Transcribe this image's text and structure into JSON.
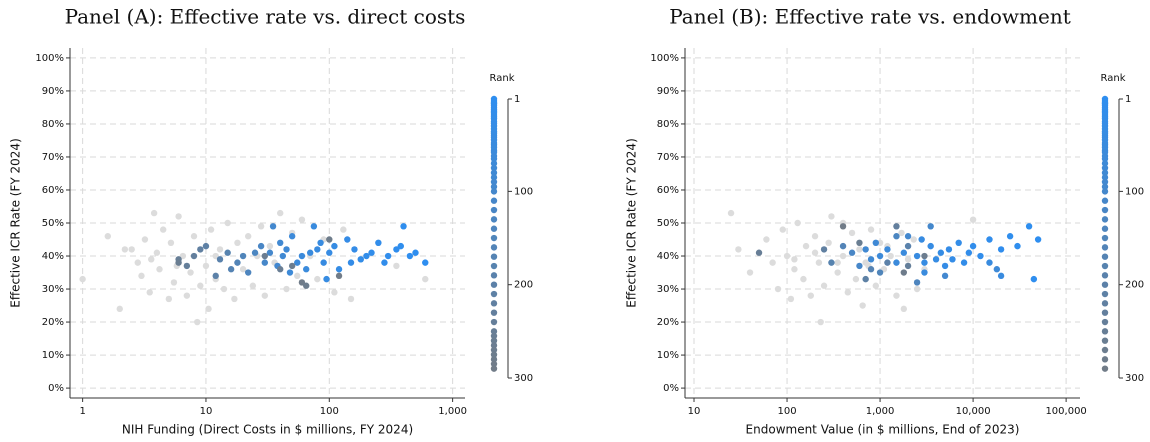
{
  "chart_data": [
    {
      "type": "scatter",
      "title": "Panel (A): Effective rate vs. direct costs",
      "xlabel": "NIH Funding (Direct Costs in $ millions, FY 2024)",
      "ylabel": "Effective ICR Rate (FY 2024)",
      "xscale": "log",
      "xlim": [
        0.79,
        1260
      ],
      "xticks": [
        1,
        10,
        100,
        {
          "value": 1000,
          "label": "1,000"
        }
      ],
      "ylim": [
        -3,
        103
      ],
      "yticks": [
        {
          "value": 0,
          "label": "0%"
        },
        {
          "value": 10,
          "label": "10%"
        },
        {
          "value": 20,
          "label": "20%"
        },
        {
          "value": 30,
          "label": "30%"
        },
        {
          "value": 40,
          "label": "40%"
        },
        {
          "value": 50,
          "label": "50%"
        },
        {
          "value": 60,
          "label": "60%"
        },
        {
          "value": 70,
          "label": "70%"
        },
        {
          "value": 80,
          "label": "80%"
        },
        {
          "value": 90,
          "label": "90%"
        },
        {
          "value": 100,
          "label": "100%"
        }
      ],
      "grid": true,
      "colorbar": {
        "title": "Rank",
        "lim": [
          1,
          300
        ],
        "ticks": [
          1,
          100,
          200,
          300
        ],
        "colors": [
          "#2e8ef0",
          "#737b84"
        ]
      },
      "series": [
        {
          "x": [
            600,
            500,
            450,
            400,
            380,
            350,
            300,
            280,
            250,
            220,
            200,
            180,
            160,
            150,
            140,
            120,
            110,
            100,
            95,
            90,
            85,
            80,
            75,
            70,
            65,
            60,
            55,
            50,
            48,
            45,
            42,
            40,
            38,
            35,
            33,
            30,
            28,
            25,
            22,
            20,
            18,
            16,
            15,
            13,
            12,
            10,
            9,
            8,
            7,
            6,
            40,
            6,
            30,
            50,
            100,
            120,
            60,
            65
          ],
          "y": [
            38,
            41,
            40,
            49,
            43,
            42,
            40,
            38,
            44,
            41,
            40,
            39,
            42,
            38,
            45,
            36,
            43,
            41,
            33,
            38,
            44,
            42,
            49,
            41,
            36,
            40,
            38,
            46,
            35,
            42,
            40,
            44,
            37,
            49,
            41,
            38,
            43,
            41,
            35,
            40,
            38,
            36,
            41,
            39,
            34,
            43,
            42,
            40,
            37,
            39,
            36,
            38,
            40,
            37,
            45,
            34,
            32,
            31
          ],
          "rank": [
            1,
            3,
            5,
            6,
            8,
            10,
            12,
            14,
            16,
            18,
            20,
            22,
            25,
            27,
            30,
            33,
            36,
            38,
            40,
            42,
            45,
            48,
            50,
            53,
            56,
            58,
            62,
            65,
            70,
            75,
            80,
            85,
            90,
            95,
            100,
            110,
            120,
            130,
            140,
            150,
            160,
            170,
            180,
            190,
            200,
            210,
            220,
            230,
            240,
            250,
            255,
            260,
            265,
            270,
            280,
            290,
            285,
            275
          ]
        },
        {
          "color": "#dcdcdc",
          "x": [
            1,
            1.6,
            2,
            2.2,
            2.8,
            3,
            3.2,
            3.5,
            3.8,
            4,
            4.2,
            4.5,
            5,
            5.2,
            5.5,
            6,
            6.5,
            7,
            7.5,
            8,
            8.5,
            9,
            10,
            10.5,
            11,
            12,
            13,
            14,
            15,
            17,
            18,
            20,
            22,
            24,
            26,
            28,
            30,
            33,
            36,
            40,
            45,
            50,
            55,
            60,
            70,
            80,
            90,
            110,
            130,
            150,
            180,
            250,
            350,
            600,
            3.6,
            5.8,
            2.5,
            12
          ],
          "y": [
            33,
            46,
            24,
            42,
            38,
            34,
            45,
            29,
            53,
            41,
            36,
            48,
            27,
            44,
            32,
            52,
            40,
            28,
            35,
            46,
            20,
            31,
            37,
            24,
            48,
            33,
            42,
            30,
            50,
            27,
            44,
            36,
            46,
            31,
            40,
            49,
            28,
            43,
            38,
            53,
            30,
            47,
            34,
            51,
            40,
            33,
            45,
            29,
            48,
            27,
            39,
            44,
            37,
            33,
            39,
            37,
            42,
            40
          ]
        }
      ]
    },
    {
      "type": "scatter",
      "title": "Panel (B): Effective rate vs. endowment",
      "xlabel": "Endowment Value (in $ millions, End of 2023)",
      "ylabel": "Effective ICR Rate (FY 2024)",
      "xscale": "log",
      "xlim": [
        8,
        141000
      ],
      "xticks": [
        10,
        100,
        {
          "value": 1000,
          "label": "1,000"
        },
        {
          "value": 10000,
          "label": "10,000"
        },
        {
          "value": 100000,
          "label": "100,000"
        }
      ],
      "ylim": [
        -3,
        103
      ],
      "yticks": [
        {
          "value": 0,
          "label": "0%"
        },
        {
          "value": 10,
          "label": "10%"
        },
        {
          "value": 20,
          "label": "20%"
        },
        {
          "value": 30,
          "label": "30%"
        },
        {
          "value": 40,
          "label": "40%"
        },
        {
          "value": 50,
          "label": "50%"
        },
        {
          "value": 60,
          "label": "60%"
        },
        {
          "value": 70,
          "label": "70%"
        },
        {
          "value": 80,
          "label": "80%"
        },
        {
          "value": 90,
          "label": "90%"
        },
        {
          "value": 100,
          "label": "100%"
        }
      ],
      "grid": true,
      "colorbar": {
        "title": "Rank",
        "lim": [
          1,
          300
        ],
        "ticks": [
          1,
          100,
          200,
          300
        ],
        "colors": [
          "#2e8ef0",
          "#737b84"
        ]
      },
      "series": [
        {
          "x": [
            50000,
            40000,
            45000,
            30000,
            25000,
            20000,
            15000,
            12000,
            10000,
            9000,
            8000,
            7000,
            6000,
            5500,
            5000,
            4500,
            4000,
            3500,
            3000,
            2800,
            2500,
            20000,
            15000,
            3000,
            1800,
            1500,
            1200,
            1000,
            18000,
            900,
            800,
            700,
            5000,
            2000,
            3500,
            600,
            500,
            1500,
            2500,
            1000,
            400,
            800,
            300,
            2000,
            1200,
            700,
            250,
            1500,
            2000,
            50,
            600,
            3000,
            1800,
            400
          ],
          "y": [
            45,
            49,
            33,
            43,
            46,
            42,
            45,
            40,
            43,
            41,
            38,
            44,
            39,
            42,
            37,
            41,
            39,
            43,
            38,
            45,
            40,
            34,
            38,
            35,
            41,
            38,
            42,
            40,
            36,
            44,
            39,
            42,
            34,
            46,
            49,
            37,
            41,
            46,
            32,
            35,
            43,
            36,
            38,
            43,
            38,
            33,
            42,
            49,
            37,
            41,
            44,
            40,
            35,
            49
          ],
          "rank": [
            1,
            3,
            5,
            6,
            8,
            10,
            12,
            14,
            16,
            18,
            20,
            22,
            25,
            27,
            30,
            33,
            36,
            38,
            40,
            42,
            45,
            48,
            50,
            53,
            56,
            58,
            62,
            65,
            70,
            75,
            80,
            85,
            90,
            95,
            100,
            110,
            120,
            130,
            140,
            150,
            160,
            170,
            180,
            190,
            200,
            210,
            220,
            230,
            240,
            250,
            260,
            270,
            280,
            290
          ]
        },
        {
          "color": "#dcdcdc",
          "x": [
            25,
            30,
            40,
            60,
            70,
            80,
            90,
            100,
            110,
            120,
            130,
            150,
            160,
            180,
            200,
            220,
            230,
            250,
            280,
            300,
            350,
            400,
            450,
            500,
            550,
            600,
            650,
            700,
            800,
            900,
            1000,
            1100,
            1300,
            1500,
            1700,
            2000,
            2300,
            2500,
            3000,
            200,
            120,
            400,
            750,
            1200,
            1800,
            350,
            10000
          ],
          "y": [
            53,
            42,
            35,
            45,
            38,
            30,
            48,
            40,
            27,
            36,
            50,
            33,
            43,
            28,
            46,
            38,
            20,
            31,
            44,
            52,
            35,
            40,
            29,
            47,
            33,
            42,
            25,
            38,
            48,
            31,
            44,
            36,
            40,
            28,
            47,
            39,
            45,
            30,
            36,
            41,
            39,
            50,
            37,
            43,
            24,
            38,
            51
          ]
        }
      ]
    }
  ]
}
